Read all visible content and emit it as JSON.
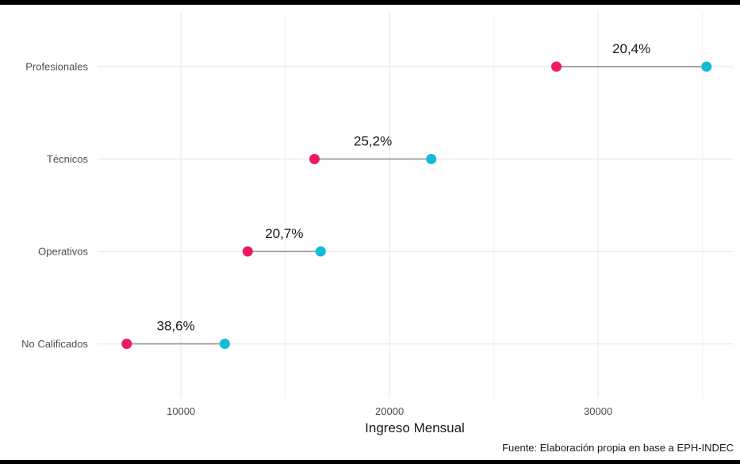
{
  "chart_data": {
    "type": "dumbbell",
    "xlabel": "Ingreso Mensual",
    "ylabel": "",
    "caption": "Fuente: Elaboración propia en base a EPH-INDEC",
    "xlim": [
      6000,
      36500
    ],
    "xticks": [
      10000,
      20000,
      30000
    ],
    "grid": true,
    "colors": {
      "low": "#f0185f",
      "high": "#12bcd6",
      "segment": "#999999"
    },
    "categories": [
      "Profesionales",
      "Técnicos",
      "Operativos",
      "No Calificados"
    ],
    "rows": [
      {
        "category": "Profesionales",
        "low": 28000,
        "high": 35200,
        "label": "20,4%"
      },
      {
        "category": "Técnicos",
        "low": 16400,
        "high": 22000,
        "label": "25,2%"
      },
      {
        "category": "Operativos",
        "low": 13200,
        "high": 16700,
        "label": "20,7%"
      },
      {
        "category": "No Calificados",
        "low": 7400,
        "high": 12100,
        "label": "38,6%"
      }
    ]
  }
}
